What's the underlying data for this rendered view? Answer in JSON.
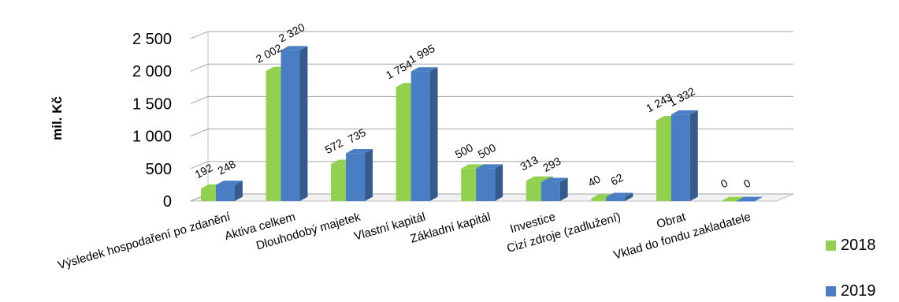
{
  "chart_data": {
    "type": "bar",
    "ylabel": "mil. Kč",
    "ylim": [
      0,
      2500
    ],
    "yticks": [
      "0",
      "500",
      "1 000",
      "1 500",
      "2 000",
      "2 500"
    ],
    "ytick_values": [
      0,
      500,
      1000,
      1500,
      2000,
      2500
    ],
    "grid": true,
    "legend_position": "right",
    "categories": [
      "Výsledek hospodaření po zdanění",
      "Aktiva celkem",
      "Dlouhodobý majetek",
      "Vlastní kapitál",
      "Základní kapitál",
      "Investice",
      "Cizí zdroje (zadlužení)",
      "Obrat",
      "Vklad do fondu zakladatele"
    ],
    "series": [
      {
        "name": "2018",
        "color": "#92D050",
        "values": [
          192,
          2002,
          572,
          1754,
          500,
          313,
          40,
          1243,
          0
        ],
        "labels": [
          "192",
          "2 002",
          "572",
          "1 754",
          "500",
          "313",
          "40",
          "1 243",
          "0"
        ]
      },
      {
        "name": "2019",
        "color": "#4A7EC4",
        "values": [
          248,
          2320,
          735,
          1995,
          500,
          293,
          62,
          1332,
          0
        ],
        "labels": [
          "248",
          "2 320",
          "735",
          "1 995",
          "500",
          "293",
          "62",
          "1 332",
          "0"
        ]
      }
    ]
  }
}
